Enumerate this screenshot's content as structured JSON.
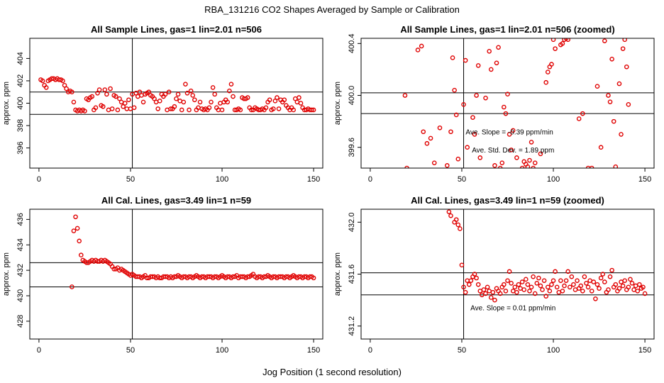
{
  "figure": {
    "title": "RBA_131216  CO2 Shapes Averaged by Sample or Calibration",
    "xlabel": "Jog Position (1 second resolution)"
  },
  "colors": {
    "points": "#e00000",
    "axes": "#000000",
    "background": "#ffffff"
  },
  "chart_data": [
    {
      "type": "scatter",
      "title": "All Sample Lines, gas=1 lin=2.01 n=506",
      "ylabel": "approx. ppm",
      "xlim": [
        -5,
        155
      ],
      "ylim": [
        394.2,
        405.8
      ],
      "xticks": [
        0,
        50,
        100,
        150
      ],
      "yticks": [
        396,
        398,
        400,
        402,
        404
      ],
      "hlines": [
        401.0,
        399.0
      ],
      "vlines": [
        51
      ],
      "series": [
        {
          "x": [
            1,
            2,
            3,
            4,
            5,
            6,
            7,
            8,
            9,
            10,
            11,
            12,
            13,
            14,
            15,
            16,
            17,
            18,
            19,
            20,
            21,
            22,
            23,
            24,
            25,
            26,
            27,
            28,
            29,
            30,
            31,
            32,
            33,
            34,
            35,
            36,
            37,
            38,
            39,
            40,
            41,
            42,
            43,
            44,
            45,
            46,
            47,
            48,
            49,
            50,
            51,
            52,
            53,
            54,
            55,
            56,
            57,
            58,
            59,
            60,
            61,
            62,
            63,
            64,
            65,
            66,
            67,
            68,
            69,
            70,
            71,
            72,
            73,
            74,
            75,
            76,
            77,
            78,
            79,
            80,
            81,
            82,
            83,
            84,
            85,
            86,
            87,
            88,
            89,
            90,
            91,
            92,
            93,
            94,
            95,
            96,
            97,
            98,
            99,
            100,
            101,
            102,
            103,
            104,
            105,
            106,
            107,
            108,
            109,
            110,
            111,
            112,
            113,
            114,
            115,
            116,
            117,
            118,
            119,
            120,
            121,
            122,
            123,
            124,
            125,
            126,
            127,
            128,
            129,
            130,
            131,
            132,
            133,
            134,
            135,
            136,
            137,
            138,
            139,
            140,
            141,
            142,
            143,
            144,
            145,
            146,
            147,
            148,
            149,
            150
          ],
          "y": [
            402.1,
            402.0,
            401.6,
            401.4,
            402.0,
            402.1,
            402.2,
            402.2,
            402.1,
            402.2,
            402.1,
            402.1,
            402.0,
            401.6,
            401.3,
            401.0,
            401.1,
            401.0,
            400.1,
            399.4,
            399.3,
            399.4,
            399.3,
            399.4,
            399.3,
            400.4,
            400.3,
            400.5,
            400.6,
            399.4,
            399.6,
            400.9,
            401.2,
            399.8,
            399.7,
            401.2,
            400.8,
            399.4,
            401.3,
            399.5,
            400.7,
            400.6,
            399.4,
            400.4,
            400.1,
            399.7,
            400.0,
            399.5,
            400.3,
            399.5,
            400.8,
            399.6,
            400.9,
            400.6,
            401.0,
            400.7,
            400.1,
            400.8,
            400.9,
            401.0,
            400.7,
            400.6,
            400.4,
            400.1,
            399.5,
            400.2,
            400.8,
            400.6,
            400.8,
            399.4,
            401.0,
            399.5,
            399.5,
            399.7,
            400.4,
            400.8,
            400.2,
            399.4,
            400.1,
            401.7,
            400.9,
            399.4,
            401.1,
            400.7,
            400.3,
            399.4,
            399.6,
            400.1,
            399.5,
            399.4,
            399.5,
            399.4,
            399.6,
            400.1,
            401.4,
            400.8,
            399.6,
            399.4,
            400.0,
            399.4,
            400.1,
            400.3,
            400.1,
            401.1,
            401.7,
            400.6,
            399.4,
            399.4,
            399.5,
            399.4,
            400.5,
            400.4,
            400.4,
            400.5,
            399.6,
            399.4,
            399.4,
            399.6,
            399.5,
            399.4,
            399.4,
            399.5,
            399.4,
            399.6,
            400.1,
            400.3,
            399.4,
            399.5,
            400.2,
            400.5,
            399.5,
            400.3,
            400.1,
            400.3,
            399.8,
            399.6,
            399.4,
            399.6,
            399.4,
            400.4,
            400.1,
            400.5,
            400.0,
            399.6,
            399.4,
            399.4,
            399.5,
            399.4,
            399.4,
            399.4
          ]
        }
      ]
    },
    {
      "type": "scatter",
      "title": "All Sample Lines, gas=1 lin=2.01 n=506 (zoomed)",
      "ylabel": "approx. ppm",
      "xlim": [
        -5,
        155
      ],
      "ylim": [
        399.44,
        400.44
      ],
      "xticks": [
        0,
        50,
        100,
        150
      ],
      "yticks": [
        399.6,
        400.0,
        400.4
      ],
      "hlines": [
        400.02,
        399.86
      ],
      "vlines": [
        51
      ],
      "annotations": [
        {
          "text": "Ave. Slope =  -0.39  ppm/min",
          "x": 76,
          "y": 399.7
        },
        {
          "text": "Ave. Std. Dev. =  1.89  ppm",
          "x": 78,
          "y": 399.56
        }
      ],
      "series": [
        {
          "x": [
            19,
            20,
            26,
            29,
            28,
            31,
            33,
            35,
            38,
            42,
            44,
            45,
            46,
            47,
            48,
            51,
            52,
            53,
            56,
            57,
            58,
            59,
            60,
            63,
            65,
            66,
            68,
            69,
            70,
            71,
            72,
            73,
            74,
            75,
            76,
            77,
            78,
            80,
            83,
            84,
            85,
            86,
            87,
            88,
            89,
            90,
            93,
            96,
            97,
            98,
            99,
            100,
            101,
            104,
            105,
            106,
            107,
            108,
            114,
            116,
            119,
            121,
            124,
            126,
            128,
            130,
            131,
            132,
            133,
            134,
            136,
            137,
            138,
            139,
            140,
            141
          ],
          "y": [
            400.0,
            399.44,
            400.35,
            399.72,
            400.38,
            399.63,
            399.67,
            399.48,
            399.75,
            399.46,
            399.72,
            400.29,
            400.04,
            399.85,
            399.51,
            399.93,
            400.27,
            399.6,
            399.83,
            399.7,
            400.0,
            400.23,
            399.52,
            399.98,
            400.34,
            400.2,
            399.46,
            400.25,
            400.37,
            399.44,
            399.48,
            399.91,
            399.86,
            400.01,
            399.7,
            399.58,
            399.73,
            399.52,
            399.44,
            399.49,
            399.47,
            399.45,
            399.5,
            399.64,
            399.44,
            399.48,
            399.55,
            400.1,
            400.18,
            400.22,
            400.24,
            400.43,
            400.36,
            400.39,
            400.4,
            400.43,
            400.44,
            400.43,
            399.82,
            399.86,
            399.44,
            399.44,
            400.07,
            399.6,
            400.42,
            400.0,
            399.95,
            400.28,
            399.8,
            399.45,
            400.09,
            399.7,
            400.36,
            400.43,
            400.22,
            399.93
          ]
        }
      ]
    },
    {
      "type": "scatter",
      "title": "All Cal. Lines, gas=3.49 lin=1 n=59",
      "ylabel": "approx. ppm",
      "xlim": [
        -5,
        155
      ],
      "ylim": [
        426.6,
        436.8
      ],
      "xticks": [
        0,
        50,
        100,
        150
      ],
      "yticks": [
        428,
        430,
        432,
        434,
        436
      ],
      "hlines": [
        432.6,
        430.7
      ],
      "vlines": [
        51
      ],
      "series": [
        {
          "x": [
            18,
            19,
            20,
            21,
            22,
            23,
            24,
            25,
            26,
            27,
            28,
            29,
            30,
            31,
            32,
            33,
            34,
            35,
            36,
            37,
            38,
            39,
            40,
            41,
            42,
            43,
            44,
            45,
            46,
            47,
            48,
            49,
            50,
            51,
            52,
            53,
            54,
            55,
            56,
            57,
            58,
            59,
            60,
            61,
            62,
            63,
            64,
            65,
            66,
            67,
            68,
            69,
            70,
            71,
            72,
            73,
            74,
            75,
            76,
            77,
            78,
            79,
            80,
            81,
            82,
            83,
            84,
            85,
            86,
            87,
            88,
            89,
            90,
            91,
            92,
            93,
            94,
            95,
            96,
            97,
            98,
            99,
            100,
            101,
            102,
            103,
            104,
            105,
            106,
            107,
            108,
            109,
            110,
            111,
            112,
            113,
            114,
            115,
            116,
            117,
            118,
            119,
            120,
            121,
            122,
            123,
            124,
            125,
            126,
            127,
            128,
            129,
            130,
            131,
            132,
            133,
            134,
            135,
            136,
            137,
            138,
            139,
            140,
            141,
            142,
            143,
            144,
            145,
            146,
            147,
            148,
            149,
            150
          ],
          "y": [
            430.7,
            435.1,
            436.2,
            435.3,
            434.3,
            433.2,
            432.8,
            432.7,
            432.6,
            432.6,
            432.7,
            432.8,
            432.7,
            432.8,
            432.7,
            432.7,
            432.8,
            432.7,
            432.8,
            432.7,
            432.6,
            432.5,
            432.3,
            432.1,
            432.1,
            432.2,
            432.0,
            432.1,
            432.0,
            431.9,
            431.8,
            431.7,
            431.6,
            431.7,
            431.6,
            431.5,
            431.5,
            431.5,
            431.4,
            431.5,
            431.6,
            431.4,
            431.4,
            431.5,
            431.5,
            431.5,
            431.4,
            431.5,
            431.4,
            431.4,
            431.5,
            431.5,
            431.5,
            431.4,
            431.5,
            431.4,
            431.5,
            431.5,
            431.6,
            431.5,
            431.4,
            431.5,
            431.5,
            431.4,
            431.5,
            431.5,
            431.4,
            431.5,
            431.6,
            431.5,
            431.4,
            431.5,
            431.5,
            431.4,
            431.5,
            431.5,
            431.5,
            431.4,
            431.5,
            431.5,
            431.4,
            431.5,
            431.6,
            431.5,
            431.4,
            431.5,
            431.5,
            431.4,
            431.5,
            431.5,
            431.6,
            431.4,
            431.5,
            431.5,
            431.5,
            431.4,
            431.5,
            431.5,
            431.6,
            431.7,
            431.5,
            431.4,
            431.5,
            431.5,
            431.4,
            431.5,
            431.5,
            431.6,
            431.5,
            431.4,
            431.5,
            431.5,
            431.4,
            431.5,
            431.5,
            431.5,
            431.4,
            431.5,
            431.5,
            431.4,
            431.5,
            431.6,
            431.5,
            431.4,
            431.5,
            431.5,
            431.4,
            431.5,
            431.5,
            431.4,
            431.5,
            431.5,
            431.4
          ]
        }
      ]
    },
    {
      "type": "scatter",
      "title": "All Cal. Lines, gas=3.49 lin=1 n=59 (zoomed)",
      "ylabel": "approx. ppm",
      "xlim": [
        -5,
        155
      ],
      "ylim": [
        431.1,
        432.1
      ],
      "xticks": [
        0,
        50,
        100,
        150
      ],
      "yticks": [
        431.2,
        431.6,
        432.0
      ],
      "hlines": [
        431.61,
        431.44
      ],
      "vlines": [
        51
      ],
      "annotations": [
        {
          "text": "Ave. Slope =  0.01  ppm/min",
          "x": 78,
          "y": 431.32
        }
      ],
      "series": [
        {
          "x": [
            43,
            44,
            46,
            47,
            48,
            49,
            50,
            51,
            52,
            53,
            54,
            55,
            56,
            57,
            58,
            59,
            60,
            61,
            62,
            63,
            64,
            65,
            66,
            67,
            68,
            69,
            70,
            71,
            72,
            73,
            74,
            75,
            76,
            77,
            78,
            79,
            80,
            81,
            82,
            83,
            84,
            85,
            86,
            87,
            88,
            89,
            90,
            91,
            92,
            93,
            94,
            95,
            96,
            97,
            98,
            99,
            100,
            101,
            102,
            103,
            104,
            105,
            106,
            107,
            108,
            109,
            110,
            111,
            112,
            113,
            114,
            115,
            116,
            117,
            118,
            119,
            120,
            121,
            122,
            123,
            124,
            125,
            126,
            127,
            128,
            129,
            130,
            131,
            132,
            133,
            134,
            135,
            136,
            137,
            138,
            139,
            140,
            141,
            142,
            143,
            144,
            145,
            146,
            147,
            148,
            149,
            150
          ],
          "y": [
            432.08,
            432.05,
            432.0,
            432.02,
            431.98,
            431.95,
            431.67,
            431.5,
            431.46,
            431.55,
            431.52,
            431.55,
            431.58,
            431.6,
            431.57,
            431.52,
            431.47,
            431.44,
            431.48,
            431.45,
            431.5,
            431.47,
            431.42,
            431.46,
            431.4,
            431.49,
            431.47,
            431.45,
            431.5,
            431.52,
            431.47,
            431.55,
            431.62,
            431.53,
            431.47,
            431.5,
            431.46,
            431.52,
            431.49,
            431.54,
            431.48,
            431.56,
            431.52,
            431.47,
            431.5,
            431.58,
            431.45,
            431.53,
            431.57,
            431.51,
            431.48,
            431.55,
            431.43,
            431.5,
            431.47,
            431.52,
            431.55,
            431.62,
            431.5,
            431.46,
            431.55,
            431.47,
            431.51,
            431.55,
            431.62,
            431.5,
            431.58,
            431.52,
            431.48,
            431.55,
            431.49,
            431.51,
            431.47,
            431.58,
            431.53,
            431.5,
            431.55,
            431.47,
            431.54,
            431.41,
            431.52,
            431.49,
            431.57,
            431.6,
            431.54,
            431.46,
            431.48,
            431.58,
            431.63,
            431.5,
            431.52,
            431.47,
            431.49,
            431.54,
            431.51,
            431.55,
            431.48,
            431.5,
            431.56,
            431.53,
            431.48,
            431.51,
            431.47,
            431.52,
            431.49,
            431.5,
            431.45
          ]
        }
      ]
    }
  ]
}
